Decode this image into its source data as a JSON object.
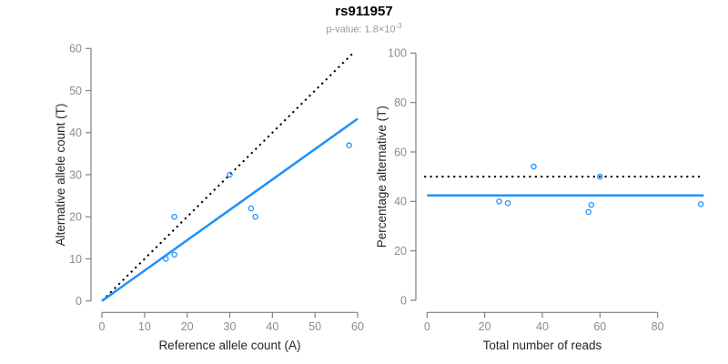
{
  "header": {
    "title": "rs911957",
    "p_value_prefix": "p-value: 1.8×10",
    "p_value_exponent": "-3"
  },
  "colors": {
    "accent_blue": "#1E90FF",
    "dotted_black": "#000000",
    "axis_line_gray": "#808080",
    "tick_label_gray": "#8C8C8C",
    "axis_title_dark": "#262626",
    "subtitle_gray": "#999999"
  },
  "chart_data": [
    {
      "type": "scatter",
      "panel": "left",
      "xlabel": "Reference allele count (A)",
      "ylabel": "Alternative allele count (T)",
      "xlim": [
        0,
        60
      ],
      "ylim": [
        0,
        60
      ],
      "xticks": [
        0,
        10,
        20,
        30,
        40,
        50,
        60
      ],
      "yticks": [
        0,
        10,
        20,
        30,
        40,
        50,
        60
      ],
      "grid": false,
      "legend": "none",
      "points": [
        [
          15,
          10
        ],
        [
          17,
          11
        ],
        [
          17,
          20
        ],
        [
          30,
          30
        ],
        [
          35,
          22
        ],
        [
          36,
          20
        ],
        [
          58,
          37
        ]
      ],
      "lines": [
        {
          "name": "identity-line",
          "style": "dotted",
          "color": "#000000",
          "x1": 0,
          "y1": 0,
          "x2": 59,
          "y2": 59
        },
        {
          "name": "fit-line",
          "style": "solid",
          "color": "#1E90FF",
          "x1": 0,
          "y1": 0,
          "x2": 60,
          "y2": 43.3
        }
      ]
    },
    {
      "type": "scatter",
      "panel": "right",
      "xlabel": "Total number of reads",
      "ylabel": "Percentage alternative (T)",
      "xlim": [
        0,
        96
      ],
      "ylim": [
        0,
        100
      ],
      "xticks": [
        0,
        20,
        40,
        60,
        80
      ],
      "yticks": [
        0,
        20,
        40,
        60,
        80,
        100
      ],
      "grid": false,
      "legend": "none",
      "points": [
        [
          25,
          40.0
        ],
        [
          28,
          39.3
        ],
        [
          37,
          54.1
        ],
        [
          56,
          35.7
        ],
        [
          57,
          38.6
        ],
        [
          60,
          50.0
        ],
        [
          95,
          38.9
        ]
      ],
      "lines": [
        {
          "name": "expected-50pct-line",
          "style": "dotted",
          "color": "#000000",
          "x1": -1,
          "y1": 50,
          "x2": 96,
          "y2": 50
        },
        {
          "name": "mean-pct-line",
          "style": "solid",
          "color": "#1E90FF",
          "x1": 0,
          "y1": 42.4,
          "x2": 96,
          "y2": 42.4
        }
      ]
    }
  ]
}
